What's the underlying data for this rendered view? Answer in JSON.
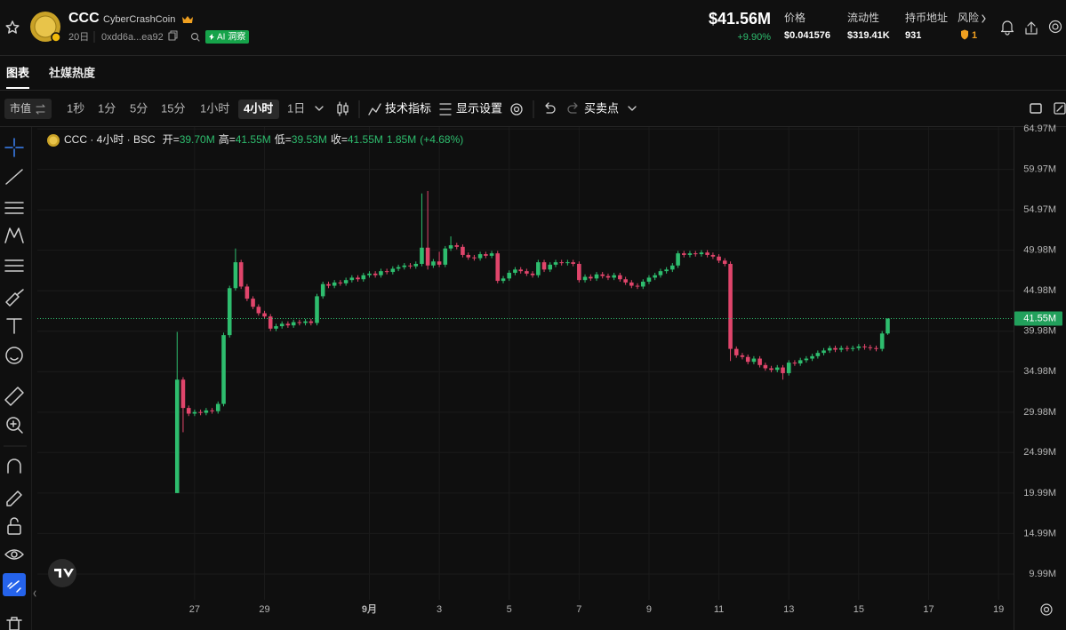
{
  "header": {
    "symbol": "CCC",
    "name": "CyberCrashCoin",
    "age": "20日",
    "address": "0xdd6a...ea92",
    "ai_badge": "AI 洞察",
    "market_cap": "$41.56M",
    "change": "+9.90%",
    "stats": [
      {
        "label": "价格",
        "value": "$0.041576"
      },
      {
        "label": "流动性",
        "value": "$319.41K"
      },
      {
        "label": "持币地址",
        "value": "931"
      }
    ],
    "risk": {
      "label": "风险",
      "value": "1"
    }
  },
  "tabs": [
    "图表",
    "社媒热度"
  ],
  "toolbar": {
    "mode": "市值",
    "intervals": [
      "1秒",
      "1分",
      "5分",
      "15分",
      "1小时",
      "4小时",
      "1日"
    ],
    "active_interval": 5,
    "indicators": "技术指标",
    "display": "显示设置",
    "trades": "买卖点"
  },
  "chart_data": {
    "type": "candlestick",
    "legend": {
      "title": "CCC · 4小时 · BSC",
      "fields": [
        {
          "name": "开=",
          "value": "39.70M"
        },
        {
          "name": "高=",
          "value": "41.55M"
        },
        {
          "name": "低=",
          "value": "39.53M"
        },
        {
          "name": "收=",
          "value": "41.55M"
        }
      ],
      "volume": "1.85M",
      "change": "(+4.68%)"
    },
    "up_color": "#2ebd6e",
    "down_color": "#e0456b",
    "grid": true,
    "xlim": [
      22.5,
      50.43
    ],
    "xticks": [
      27,
      29,
      {
        "value": 32,
        "label": "9月"
      },
      {
        "value": 34,
        "label": "3"
      },
      {
        "value": 36,
        "label": "5"
      },
      {
        "value": 38,
        "label": "7"
      },
      {
        "value": 40,
        "label": "9"
      },
      {
        "value": 42,
        "label": "11"
      },
      {
        "value": 44,
        "label": "13"
      },
      {
        "value": 46,
        "label": "15"
      },
      {
        "value": 48,
        "label": "17"
      },
      {
        "value": 50,
        "label": "19"
      }
    ],
    "ylim": [
      7.9,
      65.2
    ],
    "yticks": [
      {
        "value": 64.97,
        "label": "64.97M"
      },
      {
        "value": 59.97,
        "label": "59.97M"
      },
      {
        "value": 54.97,
        "label": "54.97M"
      },
      {
        "value": 49.98,
        "label": "49.98M"
      },
      {
        "value": 44.98,
        "label": "44.98M"
      },
      {
        "value": 39.98,
        "label": "39.98M"
      },
      {
        "value": 34.98,
        "label": "34.98M"
      },
      {
        "value": 29.98,
        "label": "29.98M"
      },
      {
        "value": 24.99,
        "label": "24.99M"
      },
      {
        "value": 19.99,
        "label": "19.99M"
      },
      {
        "value": 14.99,
        "label": "14.99M"
      },
      {
        "value": 9.99,
        "label": "9.99M"
      }
    ],
    "last_price": {
      "value": 41.55,
      "label": "41.55M"
    },
    "x": [
      26.5,
      26.67,
      26.83,
      27,
      27.17,
      27.33,
      27.5,
      27.67,
      27.83,
      28,
      28.17,
      28.33,
      28.5,
      28.67,
      28.83,
      29,
      29.17,
      29.33,
      29.5,
      29.67,
      29.83,
      30,
      30.17,
      30.33,
      30.5,
      30.67,
      30.83,
      31,
      31.17,
      31.33,
      31.5,
      31.67,
      31.83,
      32,
      32.17,
      32.33,
      32.5,
      32.67,
      32.83,
      33,
      33.17,
      33.33,
      33.5,
      33.67,
      33.83,
      34,
      34.17,
      34.33,
      34.5,
      34.67,
      34.83,
      35,
      35.17,
      35.33,
      35.5,
      35.67,
      35.83,
      36,
      36.17,
      36.33,
      36.5,
      36.67,
      36.83,
      37,
      37.17,
      37.33,
      37.5,
      37.67,
      37.83,
      38,
      38.17,
      38.33,
      38.5,
      38.67,
      38.83,
      39,
      39.17,
      39.33,
      39.5,
      39.67,
      39.83,
      40,
      40.17,
      40.33,
      40.5,
      40.67,
      40.83,
      41,
      41.17,
      41.33,
      41.5,
      41.67,
      41.83,
      42,
      42.17,
      42.33,
      42.5,
      42.67,
      42.83,
      43,
      43.17,
      43.33,
      43.5,
      43.67,
      43.83,
      44,
      44.17,
      44.33,
      44.5,
      44.67,
      44.83,
      45,
      45.17,
      45.33,
      45.5,
      45.67,
      45.83,
      46,
      46.17,
      46.33,
      46.5,
      46.67,
      46.83
    ],
    "open": [
      19.99,
      34.0,
      30.5,
      29.8,
      30.0,
      29.9,
      30.2,
      30.1,
      31.0,
      39.5,
      45.3,
      48.5,
      45.5,
      44.0,
      43.0,
      42.2,
      41.8,
      40.3,
      40.6,
      40.9,
      40.7,
      41.1,
      41.0,
      41.2,
      41.0,
      44.3,
      45.8,
      45.6,
      46.0,
      45.9,
      46.3,
      46.6,
      46.4,
      46.9,
      47.1,
      46.9,
      47.4,
      47.3,
      47.7,
      47.9,
      48.1,
      48.0,
      48.3,
      50.3,
      48.1,
      48.6,
      48.2,
      50.2,
      50.6,
      50.4,
      49.4,
      49.1,
      49.0,
      49.5,
      49.3,
      49.6,
      46.2,
      46.5,
      47.2,
      47.6,
      47.4,
      47.1,
      46.9,
      48.5,
      47.6,
      48.2,
      48.5,
      48.4,
      48.5,
      48.3,
      46.3,
      46.7,
      46.5,
      47.0,
      46.8,
      46.6,
      46.9,
      46.4,
      46.0,
      45.6,
      45.5,
      46.1,
      46.6,
      46.9,
      47.4,
      47.6,
      48.1,
      49.6,
      49.4,
      49.6,
      49.5,
      49.7,
      49.4,
      49.2,
      48.7,
      48.3,
      37.8,
      37.0,
      36.8,
      36.2,
      36.6,
      35.8,
      35.4,
      35.2,
      35.5,
      34.8,
      36.1,
      36.0,
      36.4,
      36.6,
      36.9,
      37.3,
      37.6,
      37.9,
      37.7,
      37.9,
      37.8,
      37.9,
      38.1,
      38.0,
      37.9,
      37.8,
      39.7
    ],
    "high": [
      39.9,
      34.3,
      30.8,
      30.3,
      30.3,
      30.5,
      30.5,
      31.3,
      39.8,
      45.6,
      50.2,
      48.8,
      45.8,
      44.3,
      43.3,
      42.5,
      42.1,
      40.9,
      41.2,
      41.2,
      41.4,
      41.4,
      41.5,
      41.5,
      44.6,
      46.1,
      46.1,
      46.3,
      46.3,
      46.6,
      46.9,
      46.9,
      47.2,
      47.4,
      47.4,
      47.7,
      47.7,
      48.0,
      48.2,
      48.4,
      48.4,
      48.6,
      57.0,
      57.3,
      48.9,
      49.8,
      50.5,
      51.7,
      50.9,
      50.7,
      49.7,
      49.4,
      49.8,
      49.8,
      49.9,
      49.9,
      46.8,
      47.5,
      47.9,
      47.9,
      47.7,
      47.4,
      48.8,
      48.8,
      48.5,
      48.8,
      48.8,
      48.8,
      48.8,
      48.6,
      47.0,
      47.0,
      47.3,
      47.3,
      47.1,
      47.2,
      47.2,
      46.7,
      46.3,
      45.9,
      46.4,
      46.9,
      47.2,
      47.7,
      47.9,
      48.4,
      49.9,
      49.9,
      49.9,
      49.9,
      50.0,
      50.0,
      49.7,
      49.5,
      49.0,
      48.6,
      38.1,
      37.3,
      37.1,
      36.9,
      36.9,
      36.1,
      35.7,
      35.8,
      35.8,
      36.4,
      36.4,
      36.7,
      36.9,
      37.2,
      37.6,
      37.9,
      38.2,
      38.2,
      38.2,
      38.2,
      38.2,
      38.4,
      38.4,
      38.3,
      38.2,
      40.0,
      41.55
    ],
    "low": [
      19.99,
      27.5,
      29.5,
      29.5,
      29.6,
      29.6,
      29.8,
      29.8,
      30.7,
      39.2,
      45.0,
      45.2,
      43.7,
      42.7,
      41.9,
      41.5,
      40.0,
      40.0,
      40.3,
      40.4,
      40.4,
      40.7,
      40.7,
      40.7,
      40.7,
      44.0,
      45.3,
      45.3,
      45.6,
      45.6,
      46.0,
      46.1,
      46.1,
      46.6,
      46.6,
      46.6,
      47.0,
      47.0,
      47.4,
      47.6,
      47.7,
      47.7,
      48.0,
      47.6,
      47.8,
      47.9,
      47.9,
      49.9,
      50.1,
      49.1,
      48.8,
      48.7,
      48.7,
      49.0,
      49.0,
      45.9,
      45.9,
      46.2,
      46.9,
      47.1,
      46.8,
      46.6,
      46.6,
      47.3,
      47.3,
      47.9,
      48.1,
      48.1,
      48.0,
      46.0,
      46.0,
      46.2,
      46.2,
      46.5,
      46.3,
      46.3,
      46.1,
      45.7,
      45.3,
      45.2,
      45.2,
      45.8,
      46.3,
      46.6,
      47.1,
      47.3,
      47.8,
      49.1,
      49.1,
      49.2,
      49.2,
      49.1,
      48.9,
      48.4,
      48.0,
      36.3,
      36.7,
      36.5,
      35.9,
      35.9,
      35.5,
      35.1,
      34.9,
      34.9,
      34.0,
      34.5,
      35.7,
      35.7,
      36.1,
      36.3,
      36.6,
      37.0,
      37.3,
      37.4,
      37.4,
      37.5,
      37.5,
      37.6,
      37.7,
      37.6,
      37.5,
      37.5,
      39.53
    ],
    "close": [
      34.0,
      30.5,
      29.8,
      30.0,
      29.9,
      30.2,
      30.1,
      31.0,
      39.5,
      45.3,
      48.5,
      45.5,
      44.0,
      43.0,
      42.2,
      41.8,
      40.3,
      40.6,
      40.9,
      40.7,
      41.1,
      41.0,
      41.2,
      41.0,
      44.3,
      45.8,
      45.6,
      46.0,
      45.9,
      46.3,
      46.6,
      46.4,
      46.9,
      47.1,
      46.9,
      47.4,
      47.3,
      47.7,
      47.9,
      48.1,
      48.0,
      48.3,
      50.3,
      48.1,
      48.6,
      48.2,
      50.2,
      50.6,
      50.4,
      49.4,
      49.1,
      49.0,
      49.5,
      49.3,
      49.6,
      46.2,
      46.5,
      47.2,
      47.6,
      47.4,
      47.1,
      46.9,
      48.5,
      47.6,
      48.2,
      48.5,
      48.4,
      48.5,
      48.3,
      46.3,
      46.7,
      46.5,
      47.0,
      46.8,
      46.6,
      46.9,
      46.4,
      46.0,
      45.6,
      45.5,
      46.1,
      46.6,
      46.9,
      47.4,
      47.6,
      48.1,
      49.6,
      49.4,
      49.6,
      49.5,
      49.7,
      49.4,
      49.2,
      48.7,
      48.3,
      37.8,
      37.0,
      36.8,
      36.2,
      36.6,
      35.8,
      35.4,
      35.2,
      35.5,
      34.8,
      36.1,
      36.0,
      36.4,
      36.6,
      36.9,
      37.3,
      37.6,
      37.9,
      37.7,
      37.9,
      37.8,
      37.9,
      38.1,
      38.0,
      37.9,
      37.8,
      39.7,
      41.55
    ]
  }
}
